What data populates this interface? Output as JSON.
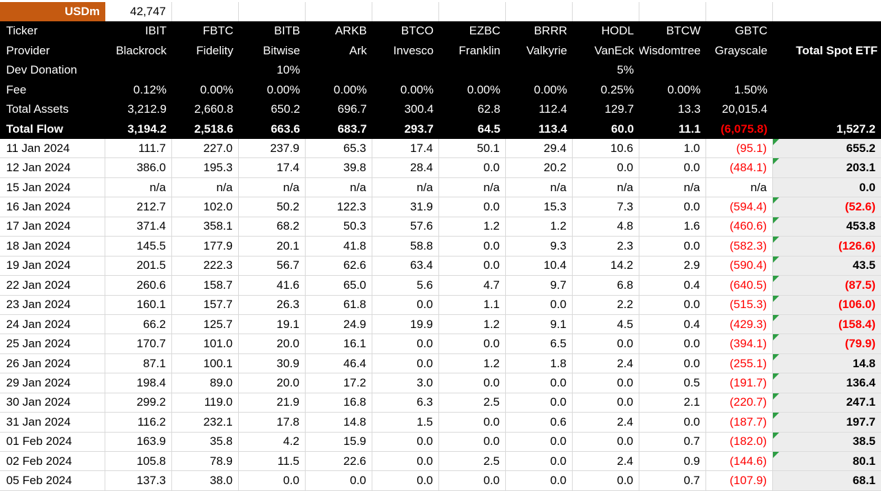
{
  "colors": {
    "accent_orange": "#c55a11",
    "header_bg": "#000000",
    "negative_red": "#ff0000",
    "note_flag_green": "#2e9e44",
    "total_column_bg": "#ededed",
    "gridline": "#d9d9d9"
  },
  "unit": {
    "label": "USDm",
    "value": "42,747"
  },
  "labels": {
    "ticker": "Ticker",
    "provider": "Provider",
    "dev_donation": "Dev Donation",
    "fee": "Fee",
    "total_assets": "Total Assets",
    "total_flow": "Total Flow",
    "total_column": "Total Spot ETF"
  },
  "funds": [
    {
      "ticker": "IBIT",
      "provider": "Blackrock",
      "dev_donation": "",
      "fee": "0.12%",
      "total_assets": "3,212.9",
      "total_flow": "3,194.2"
    },
    {
      "ticker": "FBTC",
      "provider": "Fidelity",
      "dev_donation": "",
      "fee": "0.00%",
      "total_assets": "2,660.8",
      "total_flow": "2,518.6"
    },
    {
      "ticker": "BITB",
      "provider": "Bitwise",
      "dev_donation": "10%",
      "fee": "0.00%",
      "total_assets": "650.2",
      "total_flow": "663.6"
    },
    {
      "ticker": "ARKB",
      "provider": "Ark",
      "dev_donation": "",
      "fee": "0.00%",
      "total_assets": "696.7",
      "total_flow": "683.7"
    },
    {
      "ticker": "BTCO",
      "provider": "Invesco",
      "dev_donation": "",
      "fee": "0.00%",
      "total_assets": "300.4",
      "total_flow": "293.7"
    },
    {
      "ticker": "EZBC",
      "provider": "Franklin",
      "dev_donation": "",
      "fee": "0.00%",
      "total_assets": "62.8",
      "total_flow": "64.5"
    },
    {
      "ticker": "BRRR",
      "provider": "Valkyrie",
      "dev_donation": "",
      "fee": "0.00%",
      "total_assets": "112.4",
      "total_flow": "113.4"
    },
    {
      "ticker": "HODL",
      "provider": "VanEck",
      "dev_donation": "5%",
      "fee": "0.25%",
      "total_assets": "129.7",
      "total_flow": "60.0"
    },
    {
      "ticker": "BTCW",
      "provider": "Wisdomtree",
      "dev_donation": "",
      "fee": "0.00%",
      "total_assets": "13.3",
      "total_flow": "11.1"
    },
    {
      "ticker": "GBTC",
      "provider": "Grayscale",
      "dev_donation": "",
      "fee": "1.50%",
      "total_assets": "20,015.4",
      "total_flow": "(6,075.8)"
    }
  ],
  "totals": {
    "total_flow": "1,527.2"
  },
  "daily_rows": [
    {
      "date": "11 Jan 2024",
      "flows": [
        "111.7",
        "227.0",
        "237.9",
        "65.3",
        "17.4",
        "50.1",
        "29.4",
        "10.6",
        "1.0",
        "(95.1)"
      ],
      "total": "655.2",
      "note_flag": true
    },
    {
      "date": "12 Jan 2024",
      "flows": [
        "386.0",
        "195.3",
        "17.4",
        "39.8",
        "28.4",
        "0.0",
        "20.2",
        "0.0",
        "0.0",
        "(484.1)"
      ],
      "total": "203.1",
      "note_flag": true
    },
    {
      "date": "15 Jan 2024",
      "flows": [
        "n/a",
        "n/a",
        "n/a",
        "n/a",
        "n/a",
        "n/a",
        "n/a",
        "n/a",
        "n/a",
        "n/a"
      ],
      "total": "0.0",
      "note_flag": false
    },
    {
      "date": "16 Jan 2024",
      "flows": [
        "212.7",
        "102.0",
        "50.2",
        "122.3",
        "31.9",
        "0.0",
        "15.3",
        "7.3",
        "0.0",
        "(594.4)"
      ],
      "total": "(52.6)",
      "note_flag": true
    },
    {
      "date": "17 Jan 2024",
      "flows": [
        "371.4",
        "358.1",
        "68.2",
        "50.3",
        "57.6",
        "1.2",
        "1.2",
        "4.8",
        "1.6",
        "(460.6)"
      ],
      "total": "453.8",
      "note_flag": true
    },
    {
      "date": "18 Jan 2024",
      "flows": [
        "145.5",
        "177.9",
        "20.1",
        "41.8",
        "58.8",
        "0.0",
        "9.3",
        "2.3",
        "0.0",
        "(582.3)"
      ],
      "total": "(126.6)",
      "note_flag": true
    },
    {
      "date": "19 Jan 2024",
      "flows": [
        "201.5",
        "222.3",
        "56.7",
        "62.6",
        "63.4",
        "0.0",
        "10.4",
        "14.2",
        "2.9",
        "(590.4)"
      ],
      "total": "43.5",
      "note_flag": true
    },
    {
      "date": "22 Jan 2024",
      "flows": [
        "260.6",
        "158.7",
        "41.6",
        "65.0",
        "5.6",
        "4.7",
        "9.7",
        "6.8",
        "0.4",
        "(640.5)"
      ],
      "total": "(87.5)",
      "note_flag": true
    },
    {
      "date": "23 Jan 2024",
      "flows": [
        "160.1",
        "157.7",
        "26.3",
        "61.8",
        "0.0",
        "1.1",
        "0.0",
        "2.2",
        "0.0",
        "(515.3)"
      ],
      "total": "(106.0)",
      "note_flag": true
    },
    {
      "date": "24 Jan 2024",
      "flows": [
        "66.2",
        "125.7",
        "19.1",
        "24.9",
        "19.9",
        "1.2",
        "9.1",
        "4.5",
        "0.4",
        "(429.3)"
      ],
      "total": "(158.4)",
      "note_flag": true
    },
    {
      "date": "25 Jan 2024",
      "flows": [
        "170.7",
        "101.0",
        "20.0",
        "16.1",
        "0.0",
        "0.0",
        "6.5",
        "0.0",
        "0.0",
        "(394.1)"
      ],
      "total": "(79.9)",
      "note_flag": true
    },
    {
      "date": "26 Jan 2024",
      "flows": [
        "87.1",
        "100.1",
        "30.9",
        "46.4",
        "0.0",
        "1.2",
        "1.8",
        "2.4",
        "0.0",
        "(255.1)"
      ],
      "total": "14.8",
      "note_flag": true
    },
    {
      "date": "29 Jan 2024",
      "flows": [
        "198.4",
        "89.0",
        "20.0",
        "17.2",
        "3.0",
        "0.0",
        "0.0",
        "0.0",
        "0.5",
        "(191.7)"
      ],
      "total": "136.4",
      "note_flag": true
    },
    {
      "date": "30 Jan 2024",
      "flows": [
        "299.2",
        "119.0",
        "21.9",
        "16.8",
        "6.3",
        "2.5",
        "0.0",
        "0.0",
        "2.1",
        "(220.7)"
      ],
      "total": "247.1",
      "note_flag": true
    },
    {
      "date": "31 Jan 2024",
      "flows": [
        "116.2",
        "232.1",
        "17.8",
        "14.8",
        "1.5",
        "0.0",
        "0.6",
        "2.4",
        "0.0",
        "(187.7)"
      ],
      "total": "197.7",
      "note_flag": true
    },
    {
      "date": "01 Feb 2024",
      "flows": [
        "163.9",
        "35.8",
        "4.2",
        "15.9",
        "0.0",
        "0.0",
        "0.0",
        "0.0",
        "0.7",
        "(182.0)"
      ],
      "total": "38.5",
      "note_flag": true
    },
    {
      "date": "02 Feb 2024",
      "flows": [
        "105.8",
        "78.9",
        "11.5",
        "22.6",
        "0.0",
        "2.5",
        "0.0",
        "2.4",
        "0.9",
        "(144.6)"
      ],
      "total": "80.1",
      "note_flag": true
    },
    {
      "date": "05 Feb 2024",
      "flows": [
        "137.3",
        "38.0",
        "0.0",
        "0.0",
        "0.0",
        "0.0",
        "0.0",
        "0.0",
        "0.7",
        "(107.9)"
      ],
      "total": "68.1",
      "note_flag": false
    }
  ]
}
